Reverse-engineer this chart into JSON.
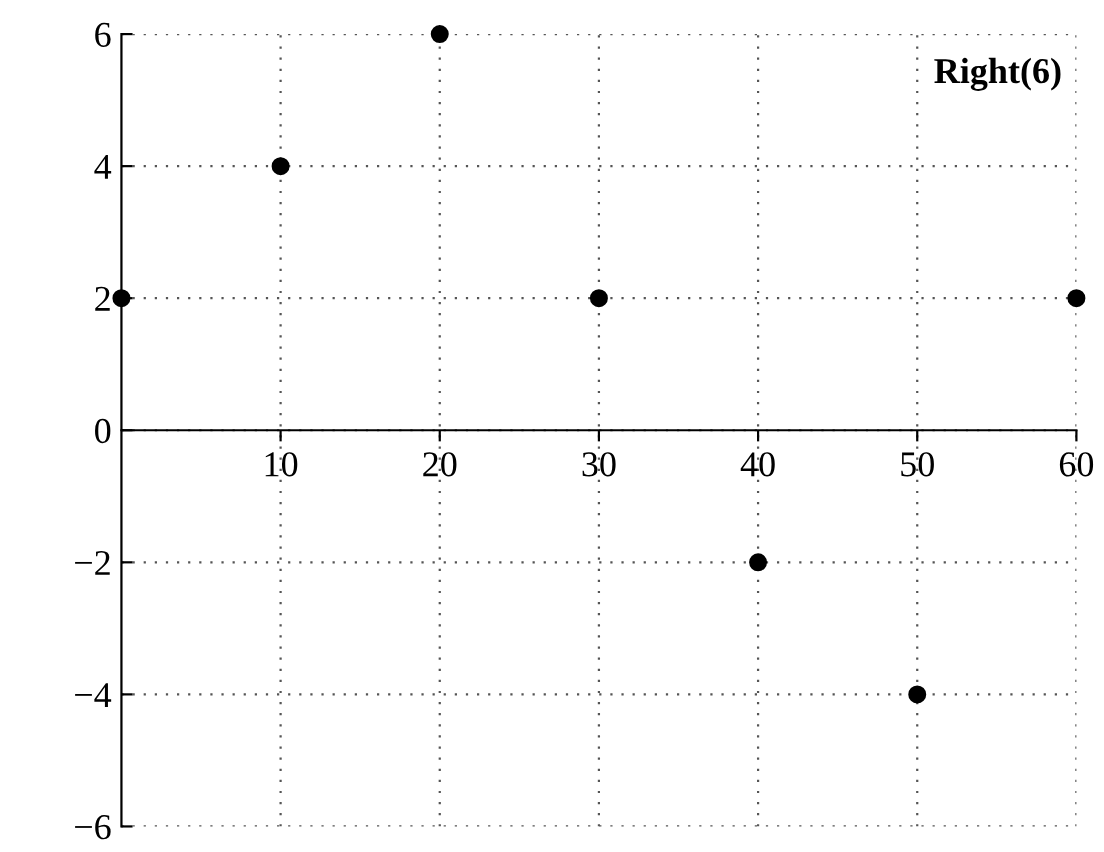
{
  "chart_data": {
    "type": "scatter",
    "title": "Right(6)",
    "x": [
      0,
      10,
      20,
      30,
      40,
      50,
      60
    ],
    "series": [
      {
        "color": "#000000",
        "values": [
          2,
          4,
          6,
          2,
          -2,
          -4,
          2
        ]
      }
    ],
    "xlim": [
      0,
      60
    ],
    "ylim": [
      -6,
      6
    ],
    "xticks": [
      10,
      20,
      30,
      40,
      50,
      60
    ],
    "yticks": [
      -6,
      -4,
      -2,
      0,
      2,
      4,
      6
    ],
    "grid": true,
    "marker": "circle",
    "legend": false
  }
}
